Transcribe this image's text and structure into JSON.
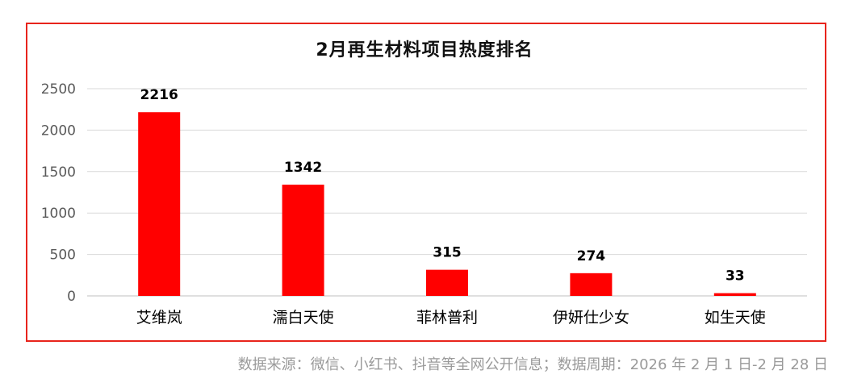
{
  "chart_data": {
    "type": "bar",
    "title": "2月再生材料项目热度排名",
    "categories": [
      "艾维岚",
      "濡白天使",
      "菲林普利",
      "伊妍仕少女",
      "如生天使"
    ],
    "values": [
      2216,
      1342,
      315,
      274,
      33
    ],
    "ylim": [
      0,
      2500
    ],
    "yticks": [
      0,
      500,
      1000,
      1500,
      2000,
      2500
    ],
    "grid": true,
    "legend": "none",
    "colors": {
      "bar": "#ff0000",
      "frame": "#e8241c",
      "grid": "#d9d9d9",
      "label": "#000000",
      "tick": "#595959"
    }
  },
  "source_note": "数据来源：微信、小红书、抖音等全网公开信息；数据周期：2026 年 2 月 1 日-2 月 28 日"
}
